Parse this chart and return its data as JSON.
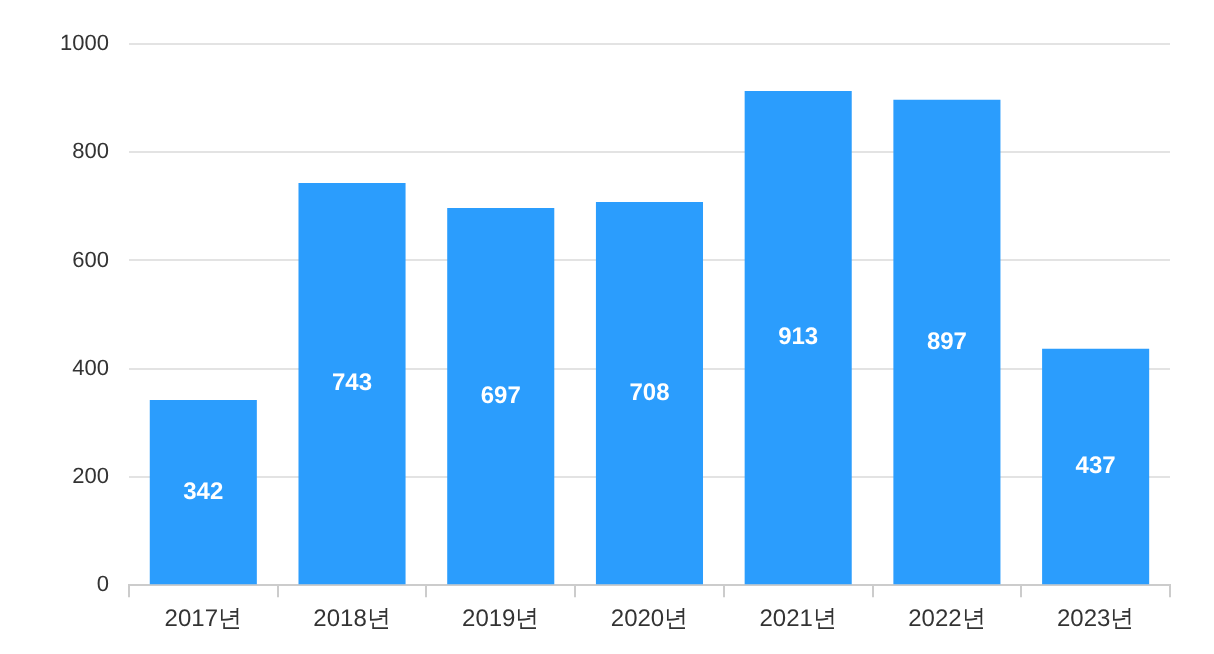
{
  "chart_data": {
    "type": "bar",
    "categories": [
      "2017년",
      "2018년",
      "2019년",
      "2020년",
      "2021년",
      "2022년",
      "2023년"
    ],
    "values": [
      342,
      743,
      697,
      708,
      913,
      897,
      437
    ],
    "color": "#2b9dfd",
    "ylim": [
      0,
      1000
    ],
    "yticks": [
      0,
      200,
      400,
      600,
      800,
      1000
    ],
    "grid": "y",
    "data_labels": true,
    "legend": false
  }
}
